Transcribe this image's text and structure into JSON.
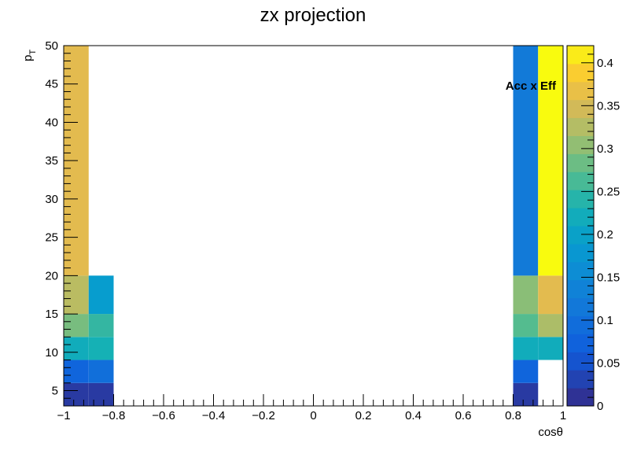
{
  "chart_data": {
    "type": "heatmap",
    "title": "zx projection",
    "xlabel": "cosθ",
    "ylabel_main": "p",
    "ylabel_sub": "T",
    "z_label": "Acc x Eff",
    "xlim": [
      -1,
      1
    ],
    "ylim": [
      3,
      50
    ],
    "zlim": [
      0,
      0.42
    ],
    "x_ticks": [
      "−1",
      "−0.8",
      "−0.6",
      "−0.4",
      "−0.2",
      "0",
      "0.2",
      "0.4",
      "0.6",
      "0.8",
      "1"
    ],
    "x_tick_values": [
      -1,
      -0.8,
      -0.6,
      -0.4,
      -0.2,
      0,
      0.2,
      0.4,
      0.6,
      0.8,
      1
    ],
    "y_ticks": [
      "5",
      "10",
      "15",
      "20",
      "25",
      "30",
      "35",
      "40",
      "45",
      "50"
    ],
    "y_tick_values": [
      5,
      10,
      15,
      20,
      25,
      30,
      35,
      40,
      45,
      50
    ],
    "z_ticks": [
      "0",
      "0.05",
      "0.1",
      "0.15",
      "0.2",
      "0.25",
      "0.3",
      "0.35",
      "0.4"
    ],
    "z_tick_values": [
      0,
      0.05,
      0.1,
      0.15,
      0.2,
      0.25,
      0.3,
      0.35,
      0.4
    ],
    "cells": [
      {
        "x0": -1.0,
        "x1": -0.9,
        "y0": 3,
        "y1": 6,
        "z": 0.02
      },
      {
        "x0": -1.0,
        "x1": -0.9,
        "y0": 6,
        "y1": 9,
        "z": 0.08
      },
      {
        "x0": -1.0,
        "x1": -0.9,
        "y0": 9,
        "y1": 12,
        "z": 0.22
      },
      {
        "x0": -1.0,
        "x1": -0.9,
        "y0": 12,
        "y1": 15,
        "z": 0.29
      },
      {
        "x0": -1.0,
        "x1": -0.9,
        "y0": 15,
        "y1": 20,
        "z": 0.33
      },
      {
        "x0": -1.0,
        "x1": -0.9,
        "y0": 20,
        "y1": 50,
        "z": 0.36
      },
      {
        "x0": -0.9,
        "x1": -0.8,
        "y0": 3,
        "y1": 6,
        "z": 0.02
      },
      {
        "x0": -0.9,
        "x1": -0.8,
        "y0": 6,
        "y1": 9,
        "z": 0.1
      },
      {
        "x0": -0.9,
        "x1": -0.8,
        "y0": 9,
        "y1": 12,
        "z": 0.23
      },
      {
        "x0": -0.9,
        "x1": -0.8,
        "y0": 12,
        "y1": 15,
        "z": 0.25
      },
      {
        "x0": -0.9,
        "x1": -0.8,
        "y0": 15,
        "y1": 20,
        "z": 0.19
      },
      {
        "x0": 0.8,
        "x1": 0.9,
        "y0": 3,
        "y1": 6,
        "z": 0.02
      },
      {
        "x0": 0.8,
        "x1": 0.9,
        "y0": 6,
        "y1": 9,
        "z": 0.08
      },
      {
        "x0": 0.8,
        "x1": 0.9,
        "y0": 9,
        "y1": 12,
        "z": 0.22
      },
      {
        "x0": 0.8,
        "x1": 0.9,
        "y0": 12,
        "y1": 15,
        "z": 0.27
      },
      {
        "x0": 0.8,
        "x1": 0.9,
        "y0": 15,
        "y1": 20,
        "z": 0.3
      },
      {
        "x0": 0.8,
        "x1": 0.9,
        "y0": 20,
        "y1": 50,
        "z": 0.12
      },
      {
        "x0": 0.9,
        "x1": 1.0,
        "y0": 9,
        "y1": 12,
        "z": 0.22
      },
      {
        "x0": 0.9,
        "x1": 1.0,
        "y0": 12,
        "y1": 15,
        "z": 0.32
      },
      {
        "x0": 0.9,
        "x1": 1.0,
        "y0": 15,
        "y1": 20,
        "z": 0.36
      },
      {
        "x0": 0.9,
        "x1": 1.0,
        "y0": 20,
        "y1": 50,
        "z": 0.42
      }
    ]
  }
}
